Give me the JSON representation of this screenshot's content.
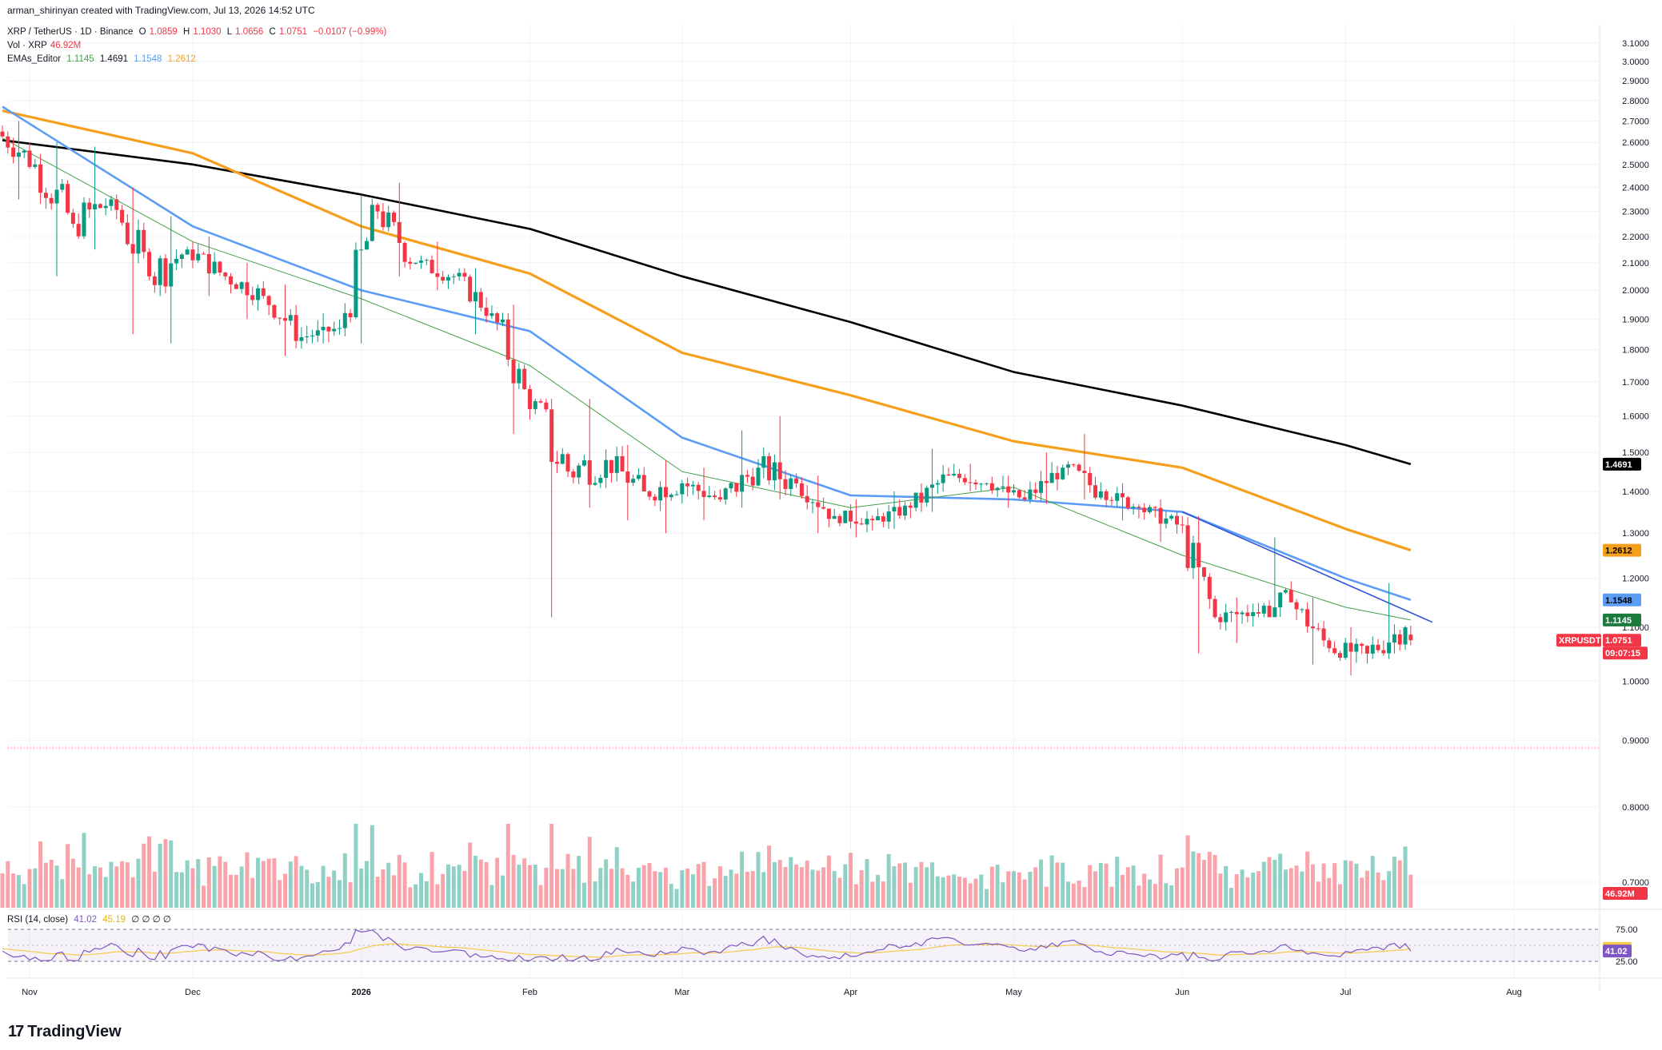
{
  "header": {
    "created_line": "arman_shirinyan created with TradingView.com, Jul 13, 2026 14:52 UTC",
    "symbol_line": "XRP / TetherUS · 1D · Binance",
    "open_label": "O",
    "open": "1.0859",
    "high_label": "H",
    "high": "1.1030",
    "low_label": "L",
    "low": "1.0656",
    "close_label": "C",
    "close": "1.0751",
    "change": "−0.0107 (−0.99%)",
    "vol_label": "Vol · XRP",
    "vol_value": "46.92M",
    "ema_label": "EMAs_Editor",
    "ema_values": [
      "1.1145",
      "1.4691",
      "1.1548",
      "1.2612"
    ],
    "rsi_label": "RSI (14, close)",
    "rsi_value": "41.02",
    "rsi_ma": "45.19",
    "rsi_extra": "∅ ∅ ∅ ∅"
  },
  "brand": {
    "logo": "17",
    "name": "TradingView"
  },
  "colors": {
    "up": "#089981",
    "down": "#f23645",
    "ema20": "#43a047",
    "ema50": "#5b9cf6",
    "ema100": "#f59f1c",
    "ema200": "#000000",
    "trendline": "#2f52d8",
    "rsi": "#7e57c2",
    "rsi_ma": "#f7c948"
  },
  "price_axis": [
    "3.1000",
    "3.0000",
    "2.9000",
    "2.8000",
    "2.7000",
    "2.6000",
    "2.5000",
    "2.4000",
    "2.3000",
    "2.2000",
    "2.1000",
    "2.0000",
    "1.9000",
    "1.8000",
    "1.7000",
    "1.6000",
    "1.5000",
    "1.4000",
    "1.3000",
    "1.2000",
    "1.1000",
    "1.0000",
    "0.9000",
    "0.8000",
    "0.7000"
  ],
  "rsi_axis": [
    "75.00",
    "25.00"
  ],
  "time_axis": [
    "Nov",
    "Dec",
    "2026",
    "Feb",
    "Mar",
    "Apr",
    "May",
    "Jun",
    "Jul",
    "Aug"
  ],
  "tags": {
    "ema200": "1.4691",
    "ema100": "1.2612",
    "ema50": "1.1548",
    "ema20": "1.1145",
    "symbol": "XRPUSDT",
    "price": "1.0751",
    "countdown": "09:07:15",
    "volume": "46.92M",
    "rsi_ma": "45.19",
    "rsi": "41.02"
  },
  "chart_data": {
    "type": "candlestick",
    "symbol": "XRP / TetherUS",
    "interval": "1D",
    "exchange": "Binance",
    "y_scale": "log",
    "ylim": [
      0.7,
      3.1
    ],
    "last_close": 1.0751,
    "weekly_ohlc": [
      {
        "week_of": "2025-10-27",
        "o": 2.65,
        "h": 2.7,
        "c": 2.5,
        "l": 2.35
      },
      {
        "week_of": "2025-11-03",
        "o": 2.5,
        "h": 2.6,
        "c": 2.25,
        "l": 2.05
      },
      {
        "week_of": "2025-11-10",
        "o": 2.25,
        "h": 2.58,
        "c": 2.35,
        "l": 2.15
      },
      {
        "week_of": "2025-11-17",
        "o": 2.35,
        "h": 2.4,
        "c": 2.05,
        "l": 1.85
      },
      {
        "week_of": "2025-11-24",
        "o": 2.05,
        "h": 2.28,
        "c": 2.15,
        "l": 1.82
      },
      {
        "week_of": "2025-12-01",
        "o": 2.15,
        "h": 2.2,
        "c": 2.05,
        "l": 1.98
      },
      {
        "week_of": "2025-12-08",
        "o": 2.05,
        "h": 2.1,
        "c": 1.98,
        "l": 1.9
      },
      {
        "week_of": "2025-12-15",
        "o": 1.98,
        "h": 2.02,
        "c": 1.84,
        "l": 1.78
      },
      {
        "week_of": "2025-12-22",
        "o": 1.84,
        "h": 1.92,
        "c": 1.87,
        "l": 1.82
      },
      {
        "week_of": "2025-12-29",
        "o": 1.87,
        "h": 2.37,
        "c": 2.3,
        "l": 1.82
      },
      {
        "week_of": "2026-01-05",
        "o": 2.3,
        "h": 2.42,
        "c": 2.1,
        "l": 2.05
      },
      {
        "week_of": "2026-01-12",
        "o": 2.1,
        "h": 2.18,
        "c": 2.05,
        "l": 2.0
      },
      {
        "week_of": "2026-01-19",
        "o": 2.05,
        "h": 2.08,
        "c": 1.92,
        "l": 1.85
      },
      {
        "week_of": "2026-01-26",
        "o": 1.92,
        "h": 1.95,
        "c": 1.62,
        "l": 1.55
      },
      {
        "week_of": "2026-02-02",
        "o": 1.62,
        "h": 1.65,
        "c": 1.45,
        "l": 1.12
      },
      {
        "week_of": "2026-02-09",
        "o": 1.45,
        "h": 1.65,
        "c": 1.48,
        "l": 1.36
      },
      {
        "week_of": "2026-02-16",
        "o": 1.48,
        "h": 1.52,
        "c": 1.4,
        "l": 1.33
      },
      {
        "week_of": "2026-02-23",
        "o": 1.4,
        "h": 1.48,
        "c": 1.42,
        "l": 1.3
      },
      {
        "week_of": "2026-03-02",
        "o": 1.42,
        "h": 1.46,
        "c": 1.38,
        "l": 1.33
      },
      {
        "week_of": "2026-03-09",
        "o": 1.38,
        "h": 1.56,
        "c": 1.46,
        "l": 1.36
      },
      {
        "week_of": "2026-03-16",
        "o": 1.46,
        "h": 1.6,
        "c": 1.42,
        "l": 1.38
      },
      {
        "week_of": "2026-03-23",
        "o": 1.42,
        "h": 1.44,
        "c": 1.34,
        "l": 1.3
      },
      {
        "week_of": "2026-03-30",
        "o": 1.34,
        "h": 1.38,
        "c": 1.33,
        "l": 1.29
      },
      {
        "week_of": "2026-04-06",
        "o": 1.33,
        "h": 1.4,
        "c": 1.36,
        "l": 1.31
      },
      {
        "week_of": "2026-04-13",
        "o": 1.36,
        "h": 1.51,
        "c": 1.44,
        "l": 1.35
      },
      {
        "week_of": "2026-04-20",
        "o": 1.44,
        "h": 1.47,
        "c": 1.42,
        "l": 1.4
      },
      {
        "week_of": "2026-04-27",
        "o": 1.42,
        "h": 1.44,
        "c": 1.38,
        "l": 1.36
      },
      {
        "week_of": "2026-05-04",
        "o": 1.38,
        "h": 1.5,
        "c": 1.46,
        "l": 1.37
      },
      {
        "week_of": "2026-05-11",
        "o": 1.46,
        "h": 1.55,
        "c": 1.4,
        "l": 1.38
      },
      {
        "week_of": "2026-05-18",
        "o": 1.4,
        "h": 1.42,
        "c": 1.36,
        "l": 1.33
      },
      {
        "week_of": "2026-05-25",
        "o": 1.36,
        "h": 1.38,
        "c": 1.32,
        "l": 1.28
      },
      {
        "week_of": "2026-06-01",
        "o": 1.32,
        "h": 1.34,
        "c": 1.12,
        "l": 1.05
      },
      {
        "week_of": "2026-06-08",
        "o": 1.12,
        "h": 1.16,
        "c": 1.13,
        "l": 1.07
      },
      {
        "week_of": "2026-06-15",
        "o": 1.13,
        "h": 1.29,
        "c": 1.15,
        "l": 1.12
      },
      {
        "week_of": "2026-06-22",
        "o": 1.15,
        "h": 1.16,
        "c": 1.06,
        "l": 1.03
      },
      {
        "week_of": "2026-06-29",
        "o": 1.06,
        "h": 1.1,
        "c": 1.05,
        "l": 1.01
      },
      {
        "week_of": "2026-07-06",
        "o": 1.05,
        "h": 1.19,
        "c": 1.1,
        "l": 1.04
      },
      {
        "week_of": "2026-07-13",
        "o": 1.0859,
        "h": 1.103,
        "c": 1.0751,
        "l": 1.0656
      }
    ],
    "series": [
      {
        "name": "EMA 20",
        "last": 1.1145
      },
      {
        "name": "EMA 50",
        "last": 1.1548
      },
      {
        "name": "EMA 100",
        "last": 1.2612
      },
      {
        "name": "EMA 200",
        "last": 1.4691
      }
    ],
    "ema_points": {
      "ema200": [
        [
          "2025-10-27",
          2.61
        ],
        [
          "2025-12-01",
          2.5
        ],
        [
          "2026-01-01",
          2.37
        ],
        [
          "2026-02-01",
          2.23
        ],
        [
          "2026-03-01",
          2.05
        ],
        [
          "2026-04-01",
          1.89
        ],
        [
          "2026-05-01",
          1.73
        ],
        [
          "2026-06-01",
          1.63
        ],
        [
          "2026-07-01",
          1.52
        ],
        [
          "2026-07-13",
          1.4691
        ]
      ],
      "ema100": [
        [
          "2025-10-27",
          2.75
        ],
        [
          "2025-12-01",
          2.55
        ],
        [
          "2026-01-01",
          2.24
        ],
        [
          "2026-02-01",
          2.06
        ],
        [
          "2026-03-01",
          1.79
        ],
        [
          "2026-04-01",
          1.66
        ],
        [
          "2026-05-01",
          1.53
        ],
        [
          "2026-06-01",
          1.46
        ],
        [
          "2026-07-01",
          1.31
        ],
        [
          "2026-07-13",
          1.2612
        ]
      ],
      "ema50": [
        [
          "2025-10-27",
          2.77
        ],
        [
          "2025-12-01",
          2.24
        ],
        [
          "2026-01-01",
          2.0
        ],
        [
          "2026-02-01",
          1.86
        ],
        [
          "2026-03-01",
          1.54
        ],
        [
          "2026-04-01",
          1.39
        ],
        [
          "2026-05-01",
          1.38
        ],
        [
          "2026-06-01",
          1.35
        ],
        [
          "2026-07-01",
          1.2
        ],
        [
          "2026-07-13",
          1.1548
        ]
      ],
      "ema20": [
        [
          "2025-10-27",
          2.62
        ],
        [
          "2025-12-01",
          2.18
        ],
        [
          "2026-01-01",
          1.97
        ],
        [
          "2026-02-01",
          1.75
        ],
        [
          "2026-03-01",
          1.45
        ],
        [
          "2026-04-01",
          1.36
        ],
        [
          "2026-05-01",
          1.41
        ],
        [
          "2026-06-01",
          1.25
        ],
        [
          "2026-07-01",
          1.14
        ],
        [
          "2026-07-13",
          1.1145
        ]
      ]
    },
    "trendline": [
      [
        "2026-06-01",
        1.35
      ],
      [
        "2026-07-17",
        1.11
      ]
    ],
    "volume_last": "46.92M",
    "rsi": {
      "period": 14,
      "last": 41.02,
      "ma": 45.19,
      "bands": [
        75,
        25
      ]
    }
  }
}
